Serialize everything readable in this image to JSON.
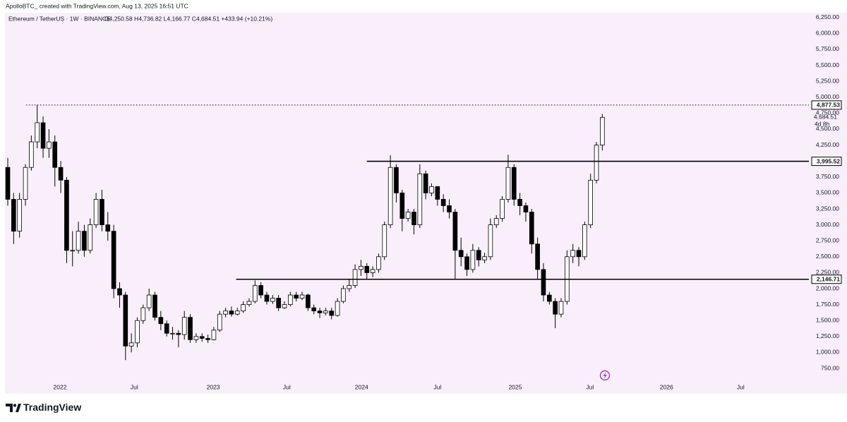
{
  "header": {
    "credit": "ApolloBTC_ created with TradingView.com, Aug 13, 2025 16:51 UTC"
  },
  "footer": {
    "brand": "TradingView"
  },
  "chart_data": {
    "type": "candlestick",
    "symbol": "Ethereum / TetherUS · 1W · BINANCE",
    "ohlc_text": "O4,250.58  H4,736.82  L4,166.77  C4,684.51  +433.94 (+10.21%)",
    "up_color": "#ffffff",
    "down_color": "#000000",
    "outline_color": "#000000",
    "background": "#f8effb",
    "open": [
      3900,
      3400,
      2900,
      3400,
      3900,
      4300,
      4600,
      4200,
      4300,
      3900,
      3700,
      2600,
      2600,
      2900,
      2600,
      3000,
      3400,
      3000,
      2900,
      2000,
      1900,
      1100,
      1150,
      1500,
      1700,
      1900,
      1550,
      1450,
      1300,
      1300,
      1280,
      1550,
      1200,
      1250,
      1220,
      1200,
      1350,
      1600,
      1650,
      1600,
      1650,
      1750,
      1800,
      2050,
      1900,
      1800,
      1850,
      1700,
      1750,
      1900,
      1850,
      1900,
      1700,
      1650,
      1620,
      1650,
      1580,
      1800,
      2000,
      2050,
      2300,
      2350,
      2250,
      2300,
      2500,
      3000,
      3900,
      3500,
      3100,
      3200,
      3000,
      3800,
      3500,
      3600,
      3400,
      3300,
      3200,
      2600,
      2500,
      2300,
      2600,
      2450,
      2500,
      3000,
      3100,
      3400,
      3900,
      3400,
      3300,
      3200,
      2700,
      2300,
      1900,
      1800,
      1600,
      1800,
      2500,
      2600,
      2500,
      3000,
      3700,
      4250.58
    ],
    "high": [
      4050,
      3500,
      3500,
      3950,
      4400,
      4877.53,
      4700,
      4500,
      4400,
      4000,
      3750,
      2900,
      3050,
      3000,
      3100,
      3500,
      3550,
      3200,
      3000,
      2100,
      1950,
      1300,
      1550,
      1750,
      2000,
      1950,
      1650,
      1500,
      1400,
      1350,
      1650,
      1600,
      1300,
      1300,
      1280,
      1400,
      1650,
      1700,
      1720,
      1700,
      1800,
      1850,
      2130,
      2100,
      1950,
      1900,
      1900,
      1800,
      1950,
      1950,
      1950,
      1920,
      1750,
      1700,
      1700,
      1700,
      1850,
      2050,
      2150,
      2380,
      2450,
      2400,
      2350,
      2550,
      3050,
      4090,
      3950,
      3550,
      3250,
      3250,
      3950,
      3850,
      3650,
      3600,
      3480,
      3400,
      3250,
      2800,
      2550,
      2700,
      2650,
      2560,
      3100,
      3150,
      3450,
      4100,
      3950,
      3500,
      3350,
      3250,
      2800,
      2400,
      1950,
      1850,
      1850,
      2600,
      2700,
      2650,
      3050,
      3800,
      4300,
      4736.82
    ],
    "low": [
      3300,
      2700,
      2800,
      3300,
      3850,
      4200,
      4050,
      4050,
      3600,
      3500,
      2400,
      2350,
      2550,
      2500,
      2550,
      2950,
      2900,
      2750,
      1850,
      1700,
      880,
      1000,
      1080,
      1450,
      1650,
      1500,
      1350,
      1250,
      1200,
      1080,
      1200,
      1150,
      1150,
      1170,
      1150,
      1190,
      1320,
      1550,
      1560,
      1580,
      1620,
      1720,
      1770,
      1850,
      1750,
      1760,
      1650,
      1680,
      1720,
      1800,
      1820,
      1650,
      1600,
      1540,
      1580,
      1520,
      1560,
      1770,
      1950,
      2010,
      2200,
      2150,
      2180,
      2250,
      2450,
      2950,
      3350,
      2900,
      3050,
      2850,
      2950,
      3400,
      3450,
      3300,
      3200,
      3100,
      2150,
      2350,
      2200,
      2250,
      2350,
      2400,
      2450,
      2950,
      3050,
      3350,
      3300,
      3150,
      3050,
      2550,
      2150,
      1800,
      1750,
      1380,
      1550,
      1750,
      2400,
      2350,
      2450,
      2950,
      3650,
      4166.77
    ],
    "close": [
      3400,
      2900,
      3400,
      3900,
      4300,
      4600,
      4200,
      4300,
      3900,
      3700,
      2600,
      2600,
      2900,
      2600,
      3000,
      3400,
      3000,
      2900,
      2000,
      1900,
      1100,
      1150,
      1500,
      1700,
      1900,
      1550,
      1450,
      1300,
      1300,
      1280,
      1550,
      1200,
      1250,
      1220,
      1200,
      1350,
      1600,
      1650,
      1600,
      1650,
      1750,
      1800,
      2050,
      1900,
      1800,
      1850,
      1700,
      1750,
      1900,
      1850,
      1900,
      1700,
      1650,
      1620,
      1650,
      1580,
      1800,
      2000,
      2050,
      2300,
      2350,
      2250,
      2300,
      2500,
      3000,
      3900,
      3500,
      3100,
      3200,
      3000,
      3800,
      3500,
      3600,
      3400,
      3300,
      3200,
      2600,
      2500,
      2300,
      2600,
      2450,
      2500,
      3000,
      3100,
      3400,
      3900,
      3400,
      3300,
      3200,
      2700,
      2300,
      1900,
      1800,
      1600,
      1800,
      2500,
      2600,
      2500,
      3000,
      3700,
      4250,
      4684.51
    ],
    "xlim": [
      -0.48,
      135.37
    ],
    "xticks": [
      {
        "value": 8.87,
        "label": "2022"
      },
      {
        "value": 21.5,
        "label": "Jul"
      },
      {
        "value": 34.9,
        "label": "2023"
      },
      {
        "value": 47.4,
        "label": "Jul"
      },
      {
        "value": 60.1,
        "label": "2024"
      },
      {
        "value": 73.0,
        "label": "Jul"
      },
      {
        "value": 86.2,
        "label": "2025"
      },
      {
        "value": 98.9,
        "label": "Jul"
      },
      {
        "value": 111.9,
        "label": "2026"
      },
      {
        "value": 124.5,
        "label": "Jul"
      }
    ],
    "ylim": [
      352,
      6325
    ],
    "yticks": [
      {
        "value": 750,
        "label": "750.00"
      },
      {
        "value": 1000,
        "label": "1,000.00"
      },
      {
        "value": 1250,
        "label": "1,250.00"
      },
      {
        "value": 1500,
        "label": "1,500.00"
      },
      {
        "value": 1750,
        "label": "1,750.00"
      },
      {
        "value": 2000,
        "label": "2,000.00"
      },
      {
        "value": 2250,
        "label": "2,250.00"
      },
      {
        "value": 2500,
        "label": "2,500.00"
      },
      {
        "value": 2750,
        "label": "2,750.00"
      },
      {
        "value": 3000,
        "label": "3,000.00"
      },
      {
        "value": 3250,
        "label": "3,250.00"
      },
      {
        "value": 3500,
        "label": "3,500.00"
      },
      {
        "value": 3750,
        "label": "3,750.00"
      },
      {
        "value": 4000,
        "label": "4,000.00"
      },
      {
        "value": 4250,
        "label": "4,250.00"
      },
      {
        "value": 4500,
        "label": "4,500.00"
      },
      {
        "value": 4750,
        "label": "4,750.00"
      },
      {
        "value": 5000,
        "label": "5,000.00"
      },
      {
        "value": 5250,
        "label": "5,250.00"
      },
      {
        "value": 5500,
        "label": "5,500.00"
      },
      {
        "value": 5750,
        "label": "5,750.00"
      },
      {
        "value": 6000,
        "label": "6,000.00"
      },
      {
        "value": 6250,
        "label": "6,250.00"
      }
    ],
    "grid": false,
    "levels": [
      {
        "value": 4877.53,
        "label": "4,877.53",
        "x_start": 3.1,
        "style": "dotted"
      },
      {
        "value": 3995.52,
        "label": "3,995.52",
        "x_start": 61.0,
        "style": "solid"
      },
      {
        "value": 2146.71,
        "label": "2,146.71",
        "x_start": 38.8,
        "style": "solid"
      }
    ],
    "price_label": {
      "value": 4684.51,
      "label": "4,684.51"
    },
    "countdown": "4d 8h"
  }
}
